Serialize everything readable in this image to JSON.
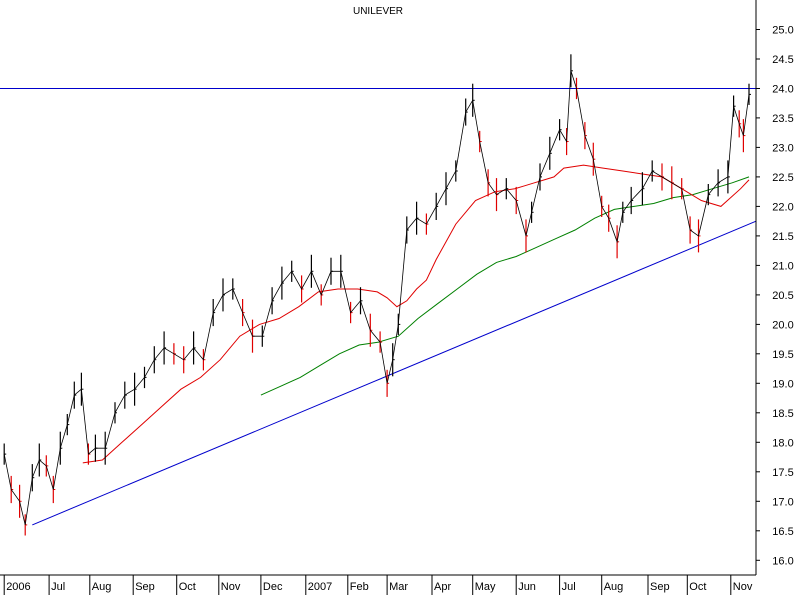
{
  "chart_data": {
    "type": "line",
    "title": "UNILEVER",
    "xlabel": "",
    "ylabel": "",
    "ylim": [
      15.75,
      25.5
    ],
    "y_ticks": [
      16.0,
      16.5,
      17.0,
      17.5,
      18.0,
      18.5,
      19.0,
      19.5,
      20.0,
      20.5,
      21.0,
      21.5,
      22.0,
      22.5,
      23.0,
      23.5,
      24.0,
      24.5,
      25.0
    ],
    "x_range": [
      "2006-05-29",
      "2007-11-19"
    ],
    "x_ticks": [
      {
        "label": "2006",
        "date": "2006-06-01"
      },
      {
        "label": "Jul",
        "date": "2006-07-03"
      },
      {
        "label": "Aug",
        "date": "2006-08-01"
      },
      {
        "label": "Sep",
        "date": "2006-09-01"
      },
      {
        "label": "Oct",
        "date": "2006-10-02"
      },
      {
        "label": "Nov",
        "date": "2006-11-01"
      },
      {
        "label": "Dec",
        "date": "2006-12-01"
      },
      {
        "label": "2007",
        "date": "2007-01-02"
      },
      {
        "label": "Feb",
        "date": "2007-02-01"
      },
      {
        "label": "Mar",
        "date": "2007-03-01"
      },
      {
        "label": "Apr",
        "date": "2007-04-02"
      },
      {
        "label": "May",
        "date": "2007-05-01"
      },
      {
        "label": "Jun",
        "date": "2007-06-01"
      },
      {
        "label": "Jul",
        "date": "2007-07-02"
      },
      {
        "label": "Aug",
        "date": "2007-08-01"
      },
      {
        "label": "Sep",
        "date": "2007-09-03"
      },
      {
        "label": "Oct",
        "date": "2007-10-01"
      },
      {
        "label": "Nov",
        "date": "2007-11-01"
      }
    ],
    "grid": false,
    "colors": {
      "price_up": "#000000",
      "price_down": "#e00000",
      "ma_short": "#e00000",
      "ma_long": "#008000",
      "trendline": "#0000cc",
      "resistance": "#0000cc"
    },
    "price": {
      "x": [
        "2006-06-01",
        "2006-06-06",
        "2006-06-12",
        "2006-06-16",
        "2006-06-21",
        "2006-06-26",
        "2006-07-01",
        "2006-07-06",
        "2006-07-11",
        "2006-07-16",
        "2006-07-21",
        "2006-07-26",
        "2006-07-31",
        "2006-08-05",
        "2006-08-12",
        "2006-08-19",
        "2006-08-26",
        "2006-09-02",
        "2006-09-09",
        "2006-09-16",
        "2006-09-23",
        "2006-09-30",
        "2006-10-07",
        "2006-10-14",
        "2006-10-21",
        "2006-10-28",
        "2006-11-04",
        "2006-11-11",
        "2006-11-18",
        "2006-11-25",
        "2006-12-02",
        "2006-12-09",
        "2006-12-16",
        "2006-12-23",
        "2006-12-30",
        "2007-01-06",
        "2007-01-13",
        "2007-01-20",
        "2007-01-27",
        "2007-02-03",
        "2007-02-10",
        "2007-02-17",
        "2007-02-24",
        "2007-03-01",
        "2007-03-05",
        "2007-03-09",
        "2007-03-15",
        "2007-03-22",
        "2007-03-29",
        "2007-04-05",
        "2007-04-12",
        "2007-04-19",
        "2007-04-26",
        "2007-05-01",
        "2007-05-06",
        "2007-05-12",
        "2007-05-18",
        "2007-05-25",
        "2007-06-01",
        "2007-06-08",
        "2007-06-12",
        "2007-06-18",
        "2007-06-25",
        "2007-07-02",
        "2007-07-07",
        "2007-07-10",
        "2007-07-14",
        "2007-07-20",
        "2007-07-26",
        "2007-08-01",
        "2007-08-06",
        "2007-08-12",
        "2007-08-16",
        "2007-08-22",
        "2007-08-30",
        "2007-09-06",
        "2007-09-13",
        "2007-09-20",
        "2007-09-27",
        "2007-10-03",
        "2007-10-09",
        "2007-10-16",
        "2007-10-23",
        "2007-10-30",
        "2007-11-03",
        "2007-11-07",
        "2007-11-10",
        "2007-11-14"
      ],
      "y": [
        17.8,
        17.2,
        17.0,
        16.6,
        17.4,
        17.7,
        17.6,
        17.2,
        17.9,
        18.3,
        18.8,
        18.9,
        17.8,
        17.9,
        17.9,
        18.5,
        18.8,
        18.9,
        19.1,
        19.4,
        19.6,
        19.5,
        19.4,
        19.6,
        19.4,
        20.2,
        20.5,
        20.6,
        20.2,
        19.8,
        19.8,
        20.4,
        20.7,
        20.9,
        20.6,
        20.9,
        20.5,
        20.9,
        20.9,
        20.2,
        20.4,
        19.9,
        19.7,
        19.0,
        19.4,
        20.0,
        21.6,
        21.8,
        21.7,
        22.0,
        22.3,
        22.6,
        23.6,
        23.8,
        23.1,
        22.4,
        22.2,
        22.3,
        22.1,
        21.5,
        21.9,
        22.5,
        22.9,
        23.3,
        23.1,
        24.3,
        24.0,
        23.2,
        22.8,
        22.0,
        21.8,
        21.4,
        21.9,
        22.1,
        22.3,
        22.6,
        22.5,
        22.4,
        22.3,
        21.6,
        21.5,
        22.2,
        22.4,
        22.5,
        23.7,
        23.4,
        23.2,
        23.9
      ]
    },
    "ma_short": {
      "x": [
        "2006-07-27",
        "2006-08-10",
        "2006-08-24",
        "2006-09-07",
        "2006-09-21",
        "2006-10-05",
        "2006-10-19",
        "2006-11-02",
        "2006-11-16",
        "2006-11-30",
        "2006-12-14",
        "2006-12-28",
        "2007-01-11",
        "2007-01-25",
        "2007-02-08",
        "2007-02-22",
        "2007-03-01",
        "2007-03-08",
        "2007-03-15",
        "2007-03-22",
        "2007-03-29",
        "2007-04-05",
        "2007-04-19",
        "2007-05-03",
        "2007-05-17",
        "2007-05-31",
        "2007-06-07",
        "2007-06-14",
        "2007-06-21",
        "2007-06-28",
        "2007-07-05",
        "2007-07-19",
        "2007-08-02",
        "2007-08-16",
        "2007-08-30",
        "2007-09-13",
        "2007-09-27",
        "2007-10-11",
        "2007-10-25",
        "2007-11-08",
        "2007-11-14"
      ],
      "y": [
        17.65,
        17.7,
        18.0,
        18.3,
        18.6,
        18.9,
        19.1,
        19.4,
        19.8,
        20.0,
        20.1,
        20.3,
        20.55,
        20.6,
        20.6,
        20.55,
        20.45,
        20.3,
        20.4,
        20.6,
        20.75,
        21.1,
        21.7,
        22.1,
        22.25,
        22.3,
        22.35,
        22.4,
        22.45,
        22.5,
        22.65,
        22.7,
        22.65,
        22.6,
        22.55,
        22.5,
        22.3,
        22.1,
        22.0,
        22.3,
        22.45
      ]
    },
    "ma_long": {
      "x": [
        "2006-12-01",
        "2006-12-15",
        "2006-12-29",
        "2007-01-12",
        "2007-01-26",
        "2007-02-09",
        "2007-02-23",
        "2007-03-09",
        "2007-03-23",
        "2007-04-06",
        "2007-04-20",
        "2007-05-04",
        "2007-05-18",
        "2007-06-01",
        "2007-06-15",
        "2007-06-29",
        "2007-07-13",
        "2007-07-27",
        "2007-08-10",
        "2007-08-24",
        "2007-09-07",
        "2007-09-21",
        "2007-10-05",
        "2007-10-19",
        "2007-11-02",
        "2007-11-14"
      ],
      "y": [
        18.8,
        18.95,
        19.1,
        19.3,
        19.5,
        19.65,
        19.7,
        19.8,
        20.1,
        20.35,
        20.6,
        20.85,
        21.05,
        21.15,
        21.3,
        21.45,
        21.6,
        21.8,
        21.95,
        22.0,
        22.05,
        22.15,
        22.2,
        22.3,
        22.4,
        22.5
      ]
    },
    "trendline": {
      "x": [
        "2006-06-21",
        "2007-11-19"
      ],
      "y": [
        16.6,
        21.75
      ]
    },
    "resistance": {
      "x": [
        "2006-05-29",
        "2007-11-19"
      ],
      "y": [
        24.0,
        24.0
      ]
    }
  }
}
